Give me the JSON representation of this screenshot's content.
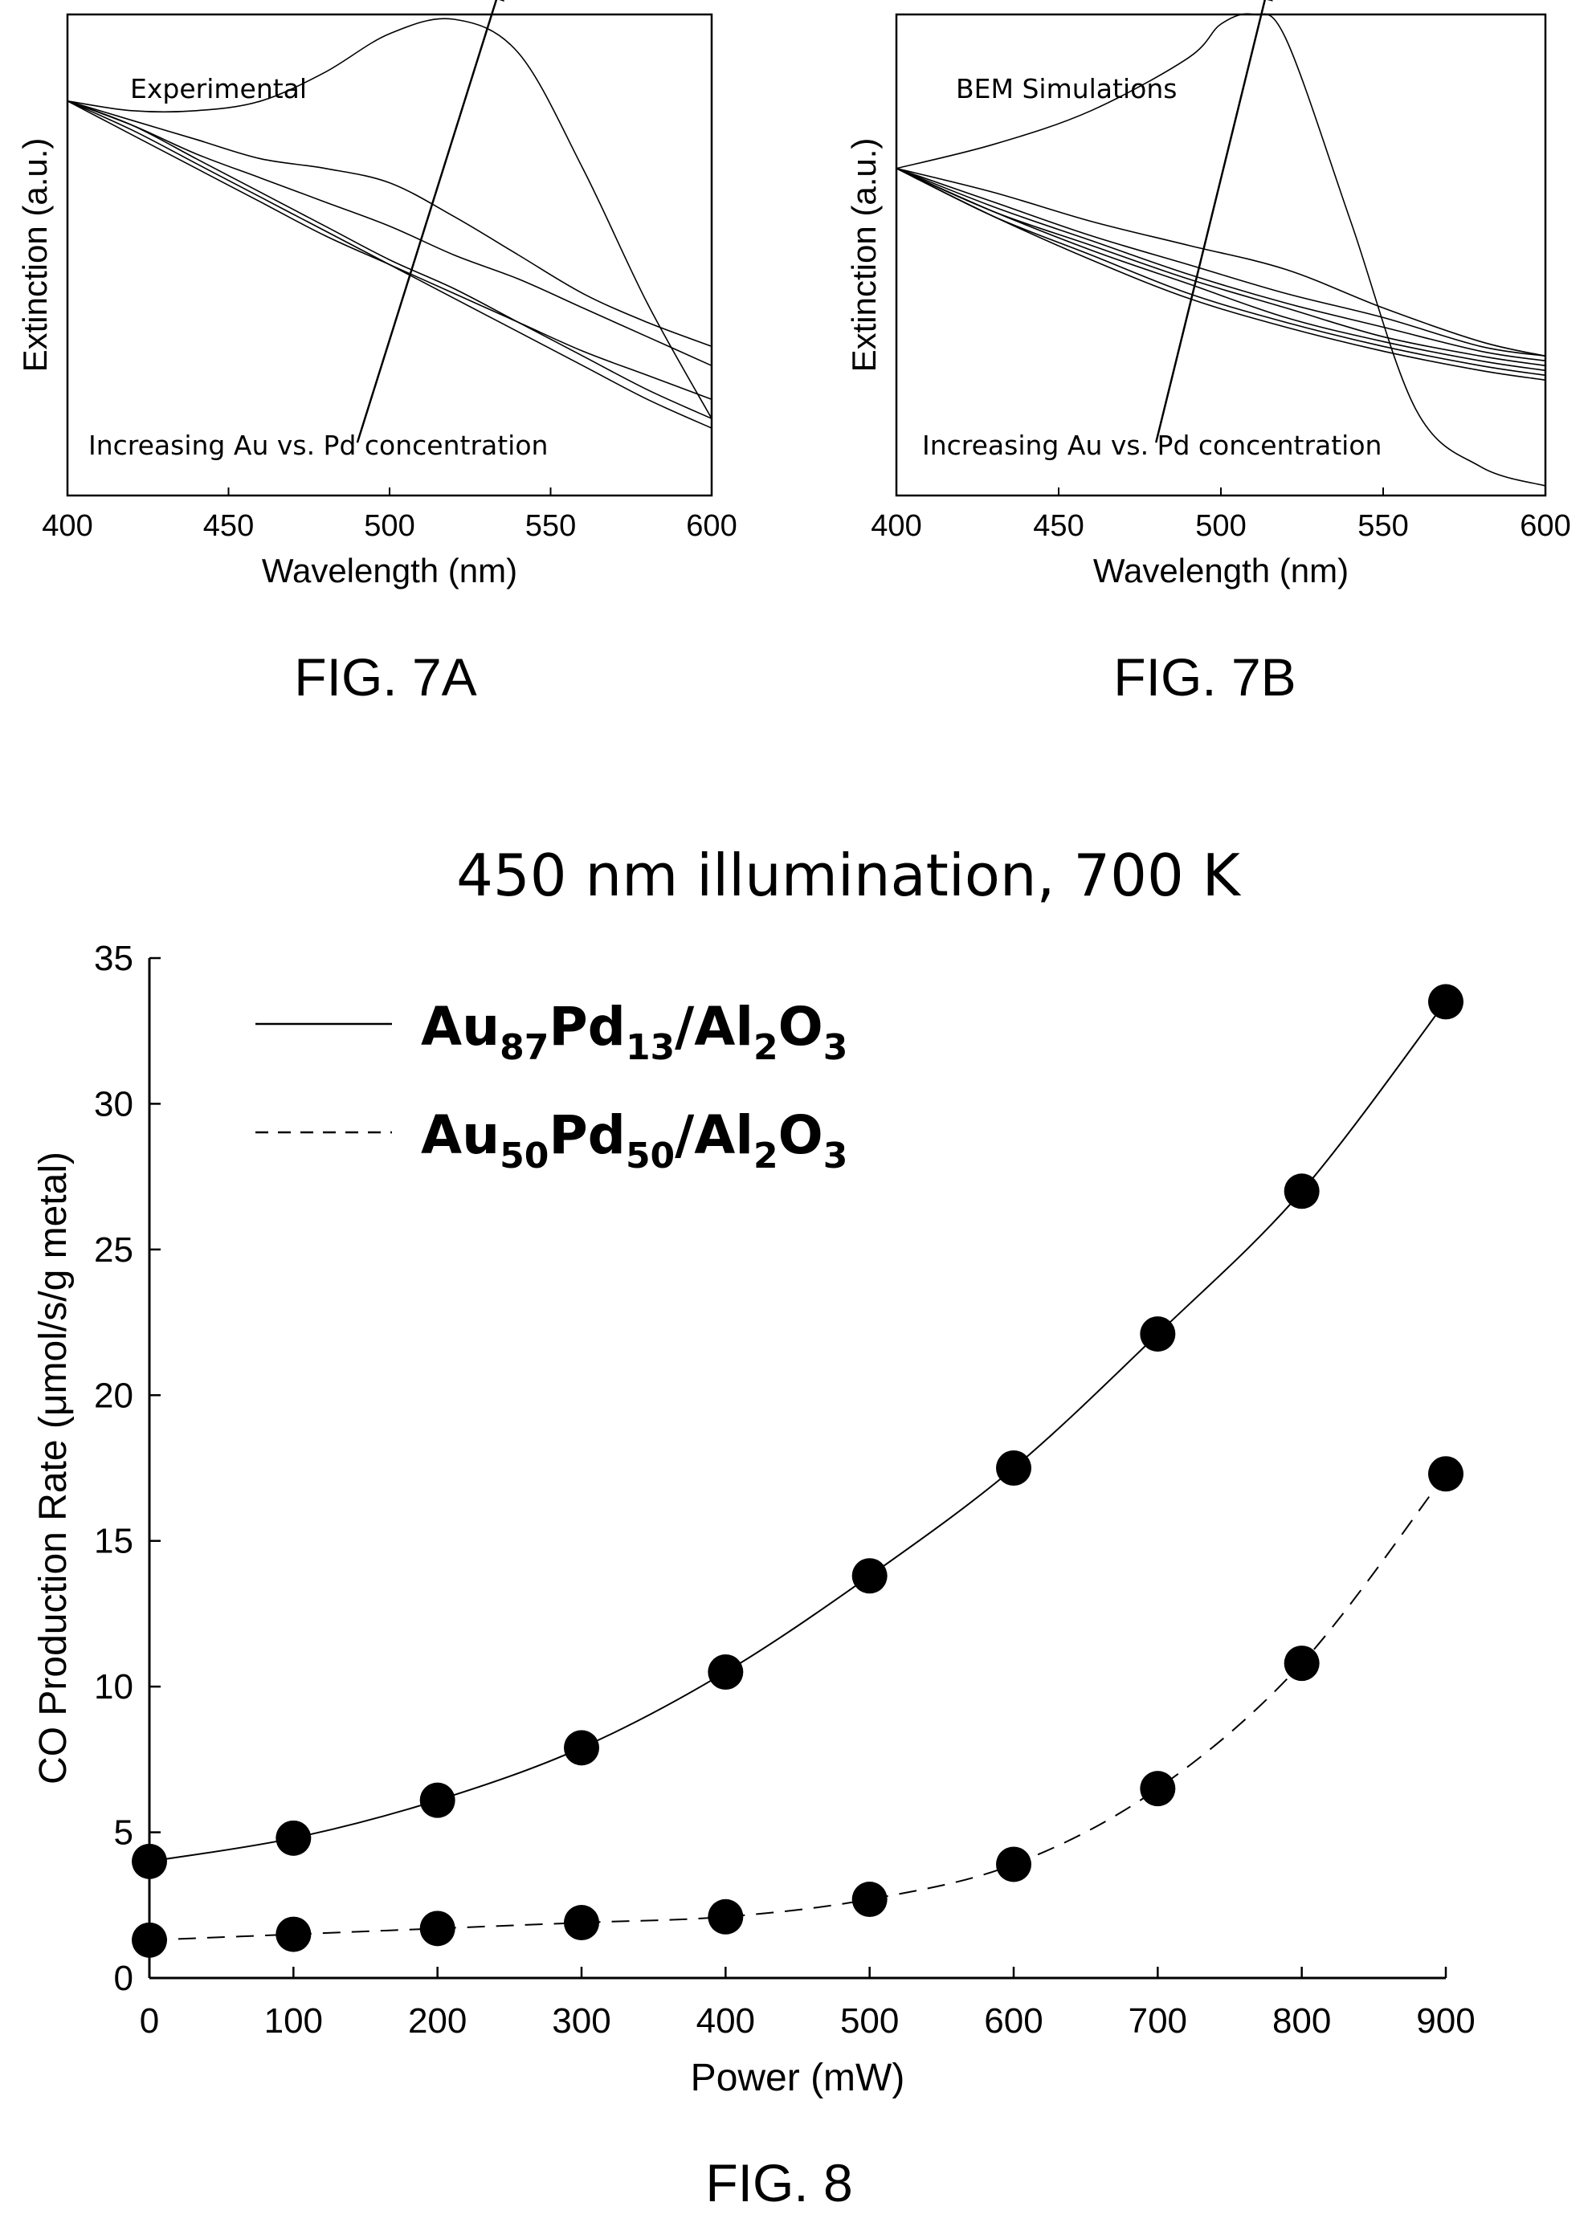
{
  "chart_data": [
    {
      "id": "fig7a",
      "type": "line",
      "caption": "FIG. 7A",
      "xlabel": "Wavelength (nm)",
      "ylabel": "Extinction (a.u.)",
      "xlim": [
        400,
        600
      ],
      "ylim": [
        0,
        1
      ],
      "xticks": [
        400,
        450,
        500,
        550,
        600
      ],
      "y_tick_labels": false,
      "grid": false,
      "annotations": [
        "Experimental",
        "Increasing Au vs. Pd concentration"
      ],
      "arrow": {
        "from": [
          490,
          0.11
        ],
        "to": [
          535,
          1.07
        ]
      },
      "series": [
        {
          "x": [
            400,
            420,
            440,
            460,
            480,
            500,
            520,
            540,
            560,
            580,
            600
          ],
          "values": [
            0.82,
            0.77,
            0.7,
            0.63,
            0.56,
            0.49,
            0.43,
            0.36,
            0.29,
            0.22,
            0.16
          ]
        },
        {
          "x": [
            400,
            420,
            440,
            460,
            480,
            500,
            520,
            540,
            560,
            580,
            600
          ],
          "values": [
            0.82,
            0.76,
            0.69,
            0.62,
            0.55,
            0.48,
            0.41,
            0.34,
            0.27,
            0.2,
            0.14
          ]
        },
        {
          "x": [
            400,
            420,
            440,
            460,
            480,
            500,
            520,
            540,
            560,
            580,
            600
          ],
          "values": [
            0.82,
            0.75,
            0.68,
            0.61,
            0.54,
            0.48,
            0.42,
            0.36,
            0.3,
            0.25,
            0.2
          ]
        },
        {
          "x": [
            400,
            420,
            440,
            460,
            480,
            500,
            520,
            540,
            560,
            580,
            600
          ],
          "values": [
            0.82,
            0.77,
            0.71,
            0.66,
            0.61,
            0.56,
            0.5,
            0.45,
            0.39,
            0.33,
            0.27
          ]
        },
        {
          "x": [
            400,
            420,
            440,
            460,
            480,
            500,
            520,
            540,
            560,
            580,
            600
          ],
          "values": [
            0.82,
            0.78,
            0.74,
            0.7,
            0.68,
            0.65,
            0.58,
            0.5,
            0.42,
            0.36,
            0.31
          ]
        },
        {
          "x": [
            400,
            420,
            440,
            460,
            480,
            500,
            520,
            540,
            560,
            580,
            600
          ],
          "values": [
            0.82,
            0.8,
            0.8,
            0.82,
            0.88,
            0.96,
            0.99,
            0.92,
            0.68,
            0.4,
            0.16
          ]
        }
      ]
    },
    {
      "id": "fig7b",
      "type": "line",
      "caption": "FIG. 7B",
      "xlabel": "Wavelength (nm)",
      "ylabel": "Extinction (a.u.)",
      "xlim": [
        400,
        600
      ],
      "ylim": [
        0,
        1
      ],
      "xticks": [
        400,
        450,
        500,
        550,
        600
      ],
      "y_tick_labels": false,
      "grid": false,
      "annotations": [
        "BEM Simulations",
        "Increasing Au vs. Pd concentration"
      ],
      "arrow": {
        "from": [
          480,
          0.11
        ],
        "to": [
          515,
          1.07
        ]
      },
      "series": [
        {
          "x": [
            400,
            430,
            460,
            490,
            520,
            550,
            580,
            600
          ],
          "values": [
            0.68,
            0.58,
            0.49,
            0.41,
            0.35,
            0.3,
            0.26,
            0.24
          ]
        },
        {
          "x": [
            400,
            430,
            460,
            490,
            520,
            550,
            580,
            600
          ],
          "values": [
            0.68,
            0.58,
            0.5,
            0.42,
            0.36,
            0.31,
            0.27,
            0.25
          ]
        },
        {
          "x": [
            400,
            430,
            460,
            490,
            520,
            550,
            580,
            600
          ],
          "values": [
            0.68,
            0.59,
            0.51,
            0.44,
            0.37,
            0.32,
            0.28,
            0.26
          ]
        },
        {
          "x": [
            400,
            430,
            460,
            490,
            520,
            550,
            580,
            600
          ],
          "values": [
            0.68,
            0.59,
            0.52,
            0.45,
            0.39,
            0.33,
            0.29,
            0.27
          ]
        },
        {
          "x": [
            400,
            430,
            460,
            490,
            520,
            550,
            580,
            600
          ],
          "values": [
            0.68,
            0.6,
            0.53,
            0.46,
            0.4,
            0.35,
            0.3,
            0.28
          ]
        },
        {
          "x": [
            400,
            430,
            460,
            490,
            520,
            550,
            580,
            600
          ],
          "values": [
            0.68,
            0.61,
            0.54,
            0.48,
            0.42,
            0.37,
            0.31,
            0.29
          ]
        },
        {
          "x": [
            400,
            430,
            460,
            490,
            520,
            550,
            580,
            600
          ],
          "values": [
            0.68,
            0.63,
            0.57,
            0.52,
            0.47,
            0.39,
            0.32,
            0.29
          ]
        },
        {
          "x": [
            400,
            430,
            460,
            490,
            500,
            510,
            520,
            540,
            560,
            580,
            600
          ],
          "values": [
            0.68,
            0.73,
            0.8,
            0.91,
            0.98,
            1.0,
            0.95,
            0.57,
            0.18,
            0.06,
            0.02
          ]
        }
      ]
    },
    {
      "id": "fig8",
      "type": "line",
      "caption": "FIG. 8",
      "title": "450 nm illumination, 700 K",
      "xlabel": "Power (mW)",
      "ylabel": "CO Production Rate (μmol/s/g metal)",
      "xlim": [
        0,
        900
      ],
      "ylim": [
        0,
        35
      ],
      "xticks": [
        0,
        100,
        200,
        300,
        400,
        500,
        600,
        700,
        800,
        900
      ],
      "yticks": [
        0,
        5,
        10,
        15,
        20,
        25,
        30,
        35
      ],
      "grid": false,
      "legend": "top-left",
      "categories": [
        0,
        100,
        200,
        300,
        400,
        500,
        600,
        700,
        800,
        900
      ],
      "series": [
        {
          "name": "Au87Pd13/Al2O3",
          "label_parts": [
            [
              "Au",
              ""
            ],
            [
              "87",
              "sub"
            ],
            [
              "Pd",
              ""
            ],
            [
              "13",
              "sub"
            ],
            [
              "/Al",
              ""
            ],
            [
              "2",
              "sub"
            ],
            [
              "O",
              ""
            ],
            [
              "3",
              "sub"
            ]
          ],
          "style": "solid",
          "marker": "filled-circle",
          "values": [
            4.0,
            4.8,
            6.1,
            7.9,
            10.5,
            13.8,
            17.5,
            22.1,
            27.0,
            33.5
          ]
        },
        {
          "name": "Au50Pd50/Al2O3",
          "label_parts": [
            [
              "Au",
              ""
            ],
            [
              "50",
              "sub"
            ],
            [
              "Pd",
              ""
            ],
            [
              "50",
              "sub"
            ],
            [
              "/Al",
              ""
            ],
            [
              "2",
              "sub"
            ],
            [
              "O",
              ""
            ],
            [
              "3",
              "sub"
            ]
          ],
          "style": "dashed",
          "marker": "filled-circle",
          "values": [
            1.3,
            1.5,
            1.7,
            1.9,
            2.1,
            2.7,
            3.9,
            6.5,
            10.8,
            17.3
          ]
        }
      ]
    }
  ]
}
